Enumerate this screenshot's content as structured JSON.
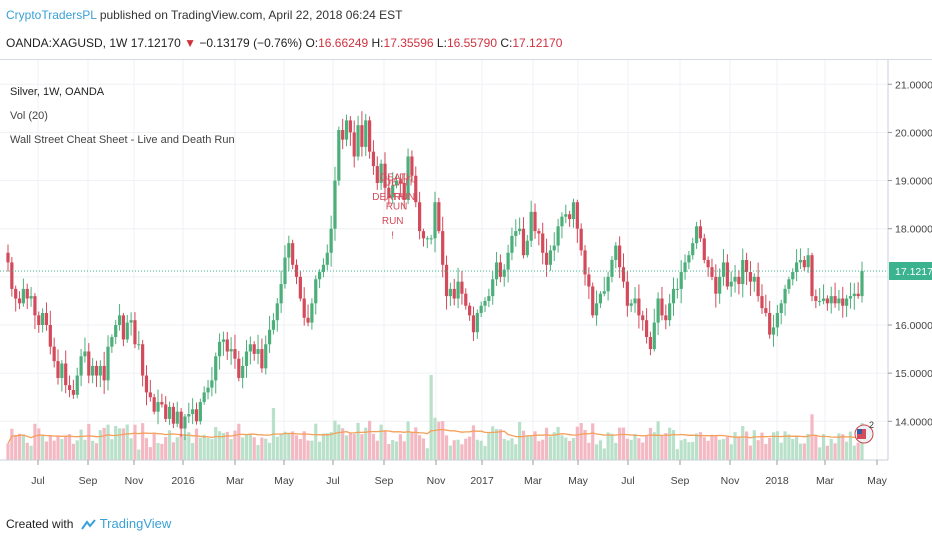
{
  "header": {
    "author": "CryptoTradersPL",
    "published_text": "published on TradingView.com, April 22, 2018 06:24 EST",
    "symbol": "OANDA:XAGUSD, 1W",
    "last": "17.12170",
    "change_arrow": "▼",
    "change": "−0.13179 (−0.76%)",
    "open_label": "O:",
    "open": "16.66249",
    "high_label": "H:",
    "high": "17.35596",
    "low_label": "L:",
    "low": "16.55790",
    "close_label": "C:",
    "close": "17.12170"
  },
  "legend": {
    "title": "Silver, 1W, OANDA",
    "volume": "Vol (20)",
    "indicator": "Wall Street Cheat Sheet - Live and Death Run"
  },
  "footer": {
    "created_with": "Created with",
    "brand": "TradingView"
  },
  "colors": {
    "up": "#4caf7a",
    "down": "#d34a5a",
    "up_vol": "#b9e1c9",
    "down_vol": "#f4b8c3",
    "vol_ma": "#f5a05a",
    "price_line": "#3bb38e",
    "price_tag": "#3bb38e"
  },
  "chart_data": {
    "type": "candlestick",
    "title": "Silver, 1W, OANDA",
    "price_axis": [
      "21.00000",
      "20.00000",
      "19.00000",
      "18.00000",
      "17.12170",
      "16.00000",
      "15.00000",
      "14.00000"
    ],
    "time_axis": [
      "Jul",
      "Sep",
      "Nov",
      "2016",
      "Mar",
      "May",
      "Jul",
      "Sep",
      "Nov",
      "2017",
      "Mar",
      "May",
      "Jul",
      "Sep",
      "Nov",
      "2018",
      "Mar",
      "May"
    ],
    "ylim": [
      13.3,
      21.4
    ],
    "current_price": 17.1217,
    "annotations": [
      {
        "text": "DEATH",
        "x": 101,
        "y": 19.0
      },
      {
        "text": "DEATH",
        "x": 102,
        "y": 18.9
      },
      {
        "text": "RUN",
        "x": 103,
        "y": 18.6
      },
      {
        "text": "DEATH",
        "x": 99,
        "y": 18.6
      },
      {
        "text": "RUN",
        "x": 101,
        "y": 18.4
      },
      {
        "text": "RUN",
        "x": 100,
        "y": 18.1
      },
      {
        "text": "!",
        "x": 100,
        "y": 17.8
      }
    ],
    "vol_ma_label": "Vol (20)",
    "closes": [
      17.3,
      16.75,
      16.55,
      16.45,
      16.75,
      16.55,
      16.6,
      16.2,
      16.0,
      16.25,
      16.0,
      15.55,
      15.25,
      14.9,
      15.2,
      14.75,
      14.65,
      14.55,
      14.95,
      15.35,
      15.45,
      14.95,
      15.15,
      14.95,
      15.15,
      14.85,
      15.55,
      15.75,
      16.0,
      16.2,
      15.7,
      16.05,
      16.1,
      15.6,
      15.6,
      14.95,
      14.6,
      14.5,
      14.2,
      14.4,
      14.35,
      14.05,
      14.3,
      13.95,
      14.2,
      13.85,
      14.1,
      14.15,
      14.25,
      14.0,
      14.4,
      14.6,
      14.7,
      14.85,
      15.35,
      15.65,
      15.7,
      15.45,
      15.5,
      15.3,
      14.9,
      15.15,
      15.45,
      15.6,
      15.4,
      15.5,
      15.1,
      15.6,
      15.9,
      16.1,
      16.45,
      16.85,
      17.4,
      17.7,
      17.25,
      17.0,
      16.55,
      16.15,
      16.05,
      16.45,
      16.95,
      17.1,
      17.25,
      17.5,
      18.0,
      19.0,
      20.05,
      19.85,
      20.25,
      20.0,
      19.5,
      20.15,
      19.7,
      20.25,
      19.6,
      19.3,
      18.95,
      19.35,
      18.85,
      18.65,
      18.9,
      19.0,
      18.95,
      18.6,
      19.5,
      19.1,
      18.55,
      17.95,
      17.8,
      17.8,
      17.8,
      18.55,
      17.95,
      17.25,
      16.6,
      16.75,
      16.55,
      16.9,
      16.65,
      16.4,
      16.2,
      15.85,
      16.25,
      16.4,
      16.5,
      16.6,
      16.95,
      17.3,
      17.0,
      17.15,
      17.5,
      17.85,
      17.95,
      18.0,
      17.45,
      17.75,
      18.35,
      17.95,
      17.9,
      17.5,
      17.25,
      17.55,
      17.65,
      18.05,
      18.25,
      18.3,
      18.2,
      18.55,
      18.0,
      17.55,
      17.05,
      16.8,
      16.2,
      16.45,
      16.65,
      16.7,
      17.0,
      17.35,
      17.65,
      17.2,
      16.9,
      16.4,
      16.45,
      16.55,
      16.2,
      16.1,
      15.75,
      15.5,
      16.05,
      16.55,
      16.2,
      16.1,
      16.45,
      16.75,
      16.75,
      17.1,
      17.3,
      17.45,
      17.7,
      18.05,
      17.8,
      17.35,
      17.2,
      17.0,
      16.65,
      17.0,
      17.3,
      16.8,
      16.9,
      17.0,
      16.85,
      17.35,
      17.1,
      16.9,
      17.0,
      16.6,
      16.35,
      16.25,
      15.8,
      15.95,
      16.25,
      16.45,
      16.75,
      16.95,
      17.1,
      17.3,
      17.35,
      17.2,
      17.45,
      16.6,
      16.5,
      16.5,
      16.55,
      16.45,
      16.6,
      16.45,
      16.55,
      16.4,
      16.55,
      16.6,
      16.65,
      16.6,
      17.12
    ]
  }
}
